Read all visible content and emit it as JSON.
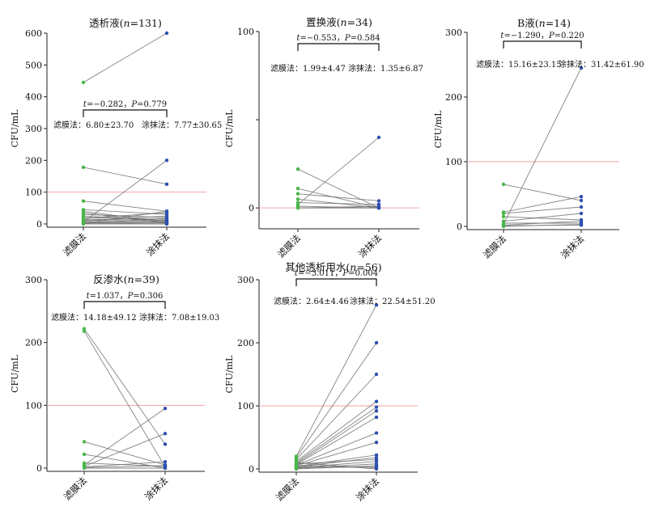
{
  "colors": {
    "left_points": "#49b649",
    "right_points": "#2f4fb0",
    "pair_lines": "#6f6f6f",
    "ref_line": "#f2a3a3"
  },
  "chart_data": [
    {
      "type": "line",
      "title": "透析液(n=131)",
      "title_parts": [
        "透析液(",
        "n",
        "=131)"
      ],
      "ylabel": "CFU/mL",
      "categories": [
        "滤膜法",
        "涂抹法"
      ],
      "ylim": [
        0,
        600
      ],
      "yticks": [
        "0",
        "100",
        "200",
        "300",
        "400",
        "500",
        "600"
      ],
      "reference_line": 100,
      "test": {
        "t": "−0.282",
        "P": "0.779"
      },
      "left_stat": "滤膜法：6.80±23.70",
      "right_stat": "涂抹法：7.77±30.65",
      "pairs": [
        [
          445,
          600
        ],
        [
          178,
          125
        ],
        [
          72,
          40
        ],
        [
          45,
          30
        ],
        [
          40,
          5
        ],
        [
          35,
          2
        ],
        [
          30,
          20
        ],
        [
          25,
          10
        ],
        [
          20,
          15
        ],
        [
          18,
          35
        ],
        [
          15,
          12
        ],
        [
          12,
          8
        ],
        [
          10,
          25
        ],
        [
          8,
          5
        ],
        [
          6,
          200
        ],
        [
          5,
          3
        ],
        [
          3,
          0
        ],
        [
          2,
          40
        ],
        [
          1,
          18
        ],
        [
          0,
          0
        ]
      ]
    },
    {
      "type": "line",
      "title": "置换液(n=34)",
      "title_parts": [
        "置换液(",
        "n",
        "=34)"
      ],
      "ylabel": "CFU/mL",
      "categories": [
        "滤膜法",
        "涂抹法"
      ],
      "ylim": [
        -10,
        100
      ],
      "yticks": [
        "0",
        "",
        "100"
      ],
      "ytick_values": [
        0,
        50,
        100
      ],
      "reference_line": 0,
      "test": {
        "t": "−0.553",
        "P": "0.584"
      },
      "left_stat": "滤膜法：1.99±4.47",
      "right_stat": "涂抹法：1.35±6.87",
      "pairs": [
        [
          22,
          0
        ],
        [
          11,
          0
        ],
        [
          8,
          4
        ],
        [
          5,
          0
        ],
        [
          3,
          2
        ],
        [
          2,
          40
        ],
        [
          1,
          0
        ],
        [
          0,
          1
        ],
        [
          0,
          0
        ]
      ]
    },
    {
      "type": "line",
      "title": "B液(n=14)",
      "title_parts": [
        "B液(",
        "n",
        "=14)"
      ],
      "ylabel": "CFU/mL",
      "categories": [
        "滤膜法",
        "涂抹法"
      ],
      "ylim": [
        0,
        300
      ],
      "yticks": [
        "0",
        "100",
        "200",
        "300"
      ],
      "reference_line": 100,
      "test": {
        "t": "−1.290",
        "P": "0.220"
      },
      "left_stat": "滤膜法：15.16±23.15",
      "right_stat": "涂抹法：31.42±61.90",
      "pairs": [
        [
          65,
          40
        ],
        [
          22,
          46
        ],
        [
          20,
          30
        ],
        [
          15,
          10
        ],
        [
          8,
          20
        ],
        [
          5,
          5
        ],
        [
          3,
          245
        ],
        [
          2,
          8
        ],
        [
          1,
          2
        ],
        [
          0,
          3
        ]
      ]
    },
    {
      "type": "line",
      "title": "反渗水(n=39)",
      "title_parts": [
        "反渗水(",
        "n",
        "=39)"
      ],
      "ylabel": "CFU/mL",
      "categories": [
        "滤膜法",
        "涂抹法"
      ],
      "ylim": [
        0,
        300
      ],
      "yticks": [
        "0",
        "100",
        "200",
        "300"
      ],
      "reference_line": 100,
      "test": {
        "t": "1.037",
        "P": "0.306"
      },
      "left_stat": "滤膜法：14.18±49.12",
      "right_stat": "涂抹法：7.08±19.03",
      "pairs": [
        [
          222,
          38
        ],
        [
          218,
          2
        ],
        [
          42,
          5
        ],
        [
          22,
          0
        ],
        [
          8,
          3
        ],
        [
          5,
          95
        ],
        [
          3,
          55
        ],
        [
          2,
          10
        ],
        [
          1,
          4
        ],
        [
          0,
          0
        ]
      ]
    },
    {
      "type": "line",
      "title": "其他透析用水(n=56)",
      "title_parts": [
        "其他透析用水(",
        "n",
        "=56)"
      ],
      "ylabel": "CFU/mL",
      "categories": [
        "滤膜法",
        "涂抹法"
      ],
      "ylim": [
        0,
        300
      ],
      "yticks": [
        "0",
        "100",
        "200",
        "300"
      ],
      "reference_line": 100,
      "test": {
        "t": "−3.011",
        "P": "0.004"
      },
      "left_stat": "滤膜法：2.64±4.46",
      "right_stat": "涂抹法：22.54±51.20",
      "pairs": [
        [
          20,
          260
        ],
        [
          18,
          200
        ],
        [
          15,
          150
        ],
        [
          12,
          107
        ],
        [
          10,
          98
        ],
        [
          8,
          92
        ],
        [
          7,
          82
        ],
        [
          6,
          57
        ],
        [
          5,
          42
        ],
        [
          4,
          22
        ],
        [
          3,
          18
        ],
        [
          2,
          12
        ],
        [
          1,
          8
        ],
        [
          0,
          5
        ],
        [
          2,
          3
        ],
        [
          5,
          2
        ],
        [
          8,
          15
        ],
        [
          10,
          0
        ]
      ]
    }
  ]
}
